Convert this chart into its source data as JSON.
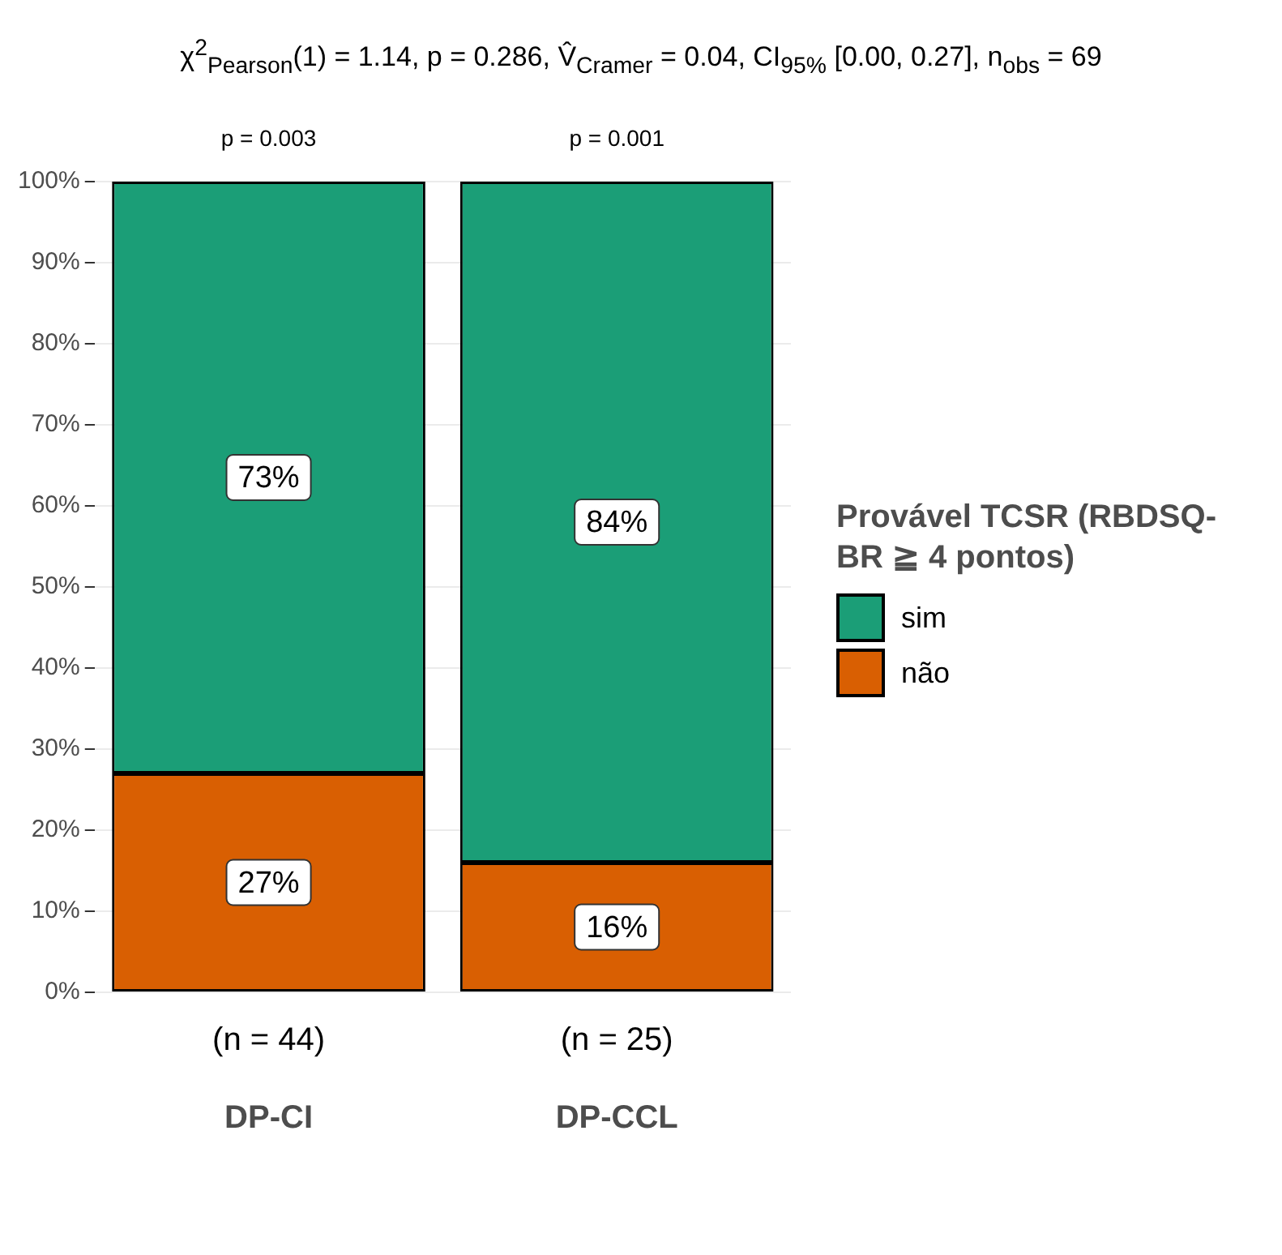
{
  "chart_data": {
    "type": "bar",
    "title": "χ$^{2}$$_{Pearson}$(1) = 1.14, p = 0.286, V̂$_{Cramer}$ = 0.04, CI$_{95%}$ [0.00, 0.27], n$_{obs}$ = 69",
    "legend_title": "Provável TCSR (RBDSQ-BR ≧ 4 pontos)",
    "categories": [
      "DP-CI",
      "DP-CCL"
    ],
    "stacked": true,
    "series": [
      {
        "name": "não",
        "color": "#d95f02",
        "values": [
          27,
          16
        ],
        "value_labels": [
          "27%",
          "16%"
        ]
      },
      {
        "name": "sim",
        "color": "#1b9e77",
        "values": [
          73,
          84
        ],
        "value_labels": [
          "73%",
          "84%"
        ]
      }
    ],
    "ylim": [
      0,
      100
    ],
    "yticks": [
      {
        "value": 0,
        "label": "0%"
      },
      {
        "value": 10,
        "label": "10%"
      },
      {
        "value": 20,
        "label": "20%"
      },
      {
        "value": 30,
        "label": "30%"
      },
      {
        "value": 40,
        "label": "40%"
      },
      {
        "value": 50,
        "label": "50%"
      },
      {
        "value": 60,
        "label": "60%"
      },
      {
        "value": 70,
        "label": "70%"
      },
      {
        "value": 80,
        "label": "80%"
      },
      {
        "value": 90,
        "label": "90%"
      },
      {
        "value": 100,
        "label": "100%"
      }
    ],
    "grid": "y",
    "legend": "right",
    "annotations": [
      {
        "text": "p = 0.003",
        "x": "DP-CI",
        "y": 100
      },
      {
        "text": "p = 0.001",
        "x": "DP-CCL",
        "y": 100
      },
      {
        "text": "(n = 44)",
        "x": "DP-CI",
        "y": 0
      },
      {
        "text": "(n = 25)",
        "x": "DP-CCL",
        "y": 0
      }
    ]
  }
}
